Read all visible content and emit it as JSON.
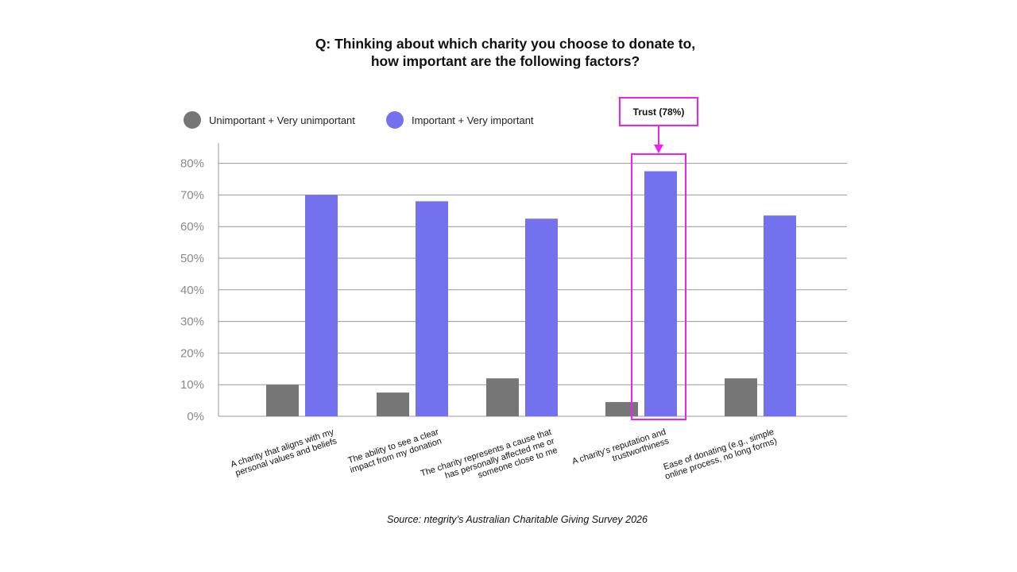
{
  "title_lines": [
    "Q: Thinking about which charity you choose to donate to,",
    "how important are the following factors?"
  ],
  "source": "Source: ntegrity’s Australian Charitable Giving Survey 2026",
  "colors": {
    "unimportant": "#767676",
    "important": "#7371ee",
    "highlight": "#ee22ee",
    "grid": "#9a9a9a"
  },
  "chart_data": {
    "type": "bar",
    "categories": [
      [
        "A charity that aligns with my",
        "personal values and beliefs"
      ],
      [
        "The ability to see a  clear",
        "impact from my donation"
      ],
      [
        "The charity represents a cause that",
        "has personally affected me or",
        "someone close to me"
      ],
      [
        "A charity’s reputation and",
        "trustworthiness"
      ],
      [
        "Ease of donating (e.g., simple",
        "online process, no long forms)"
      ]
    ],
    "series": [
      {
        "name": "Unimportant + Very unimportant",
        "values": [
          10,
          7.5,
          12,
          4.5,
          12
        ]
      },
      {
        "name": "Important + Very important",
        "values": [
          70,
          68,
          62.5,
          77.5,
          63.5
        ]
      }
    ],
    "yticks": [
      "0%",
      "10%",
      "20%",
      "30%",
      "40%",
      "50%",
      "60%",
      "70%",
      "80%"
    ],
    "ylim": [
      0,
      80
    ],
    "grid": true,
    "legend_position": "top-left",
    "annotation": {
      "text": "Trust (78%)",
      "category_index": 3
    }
  }
}
